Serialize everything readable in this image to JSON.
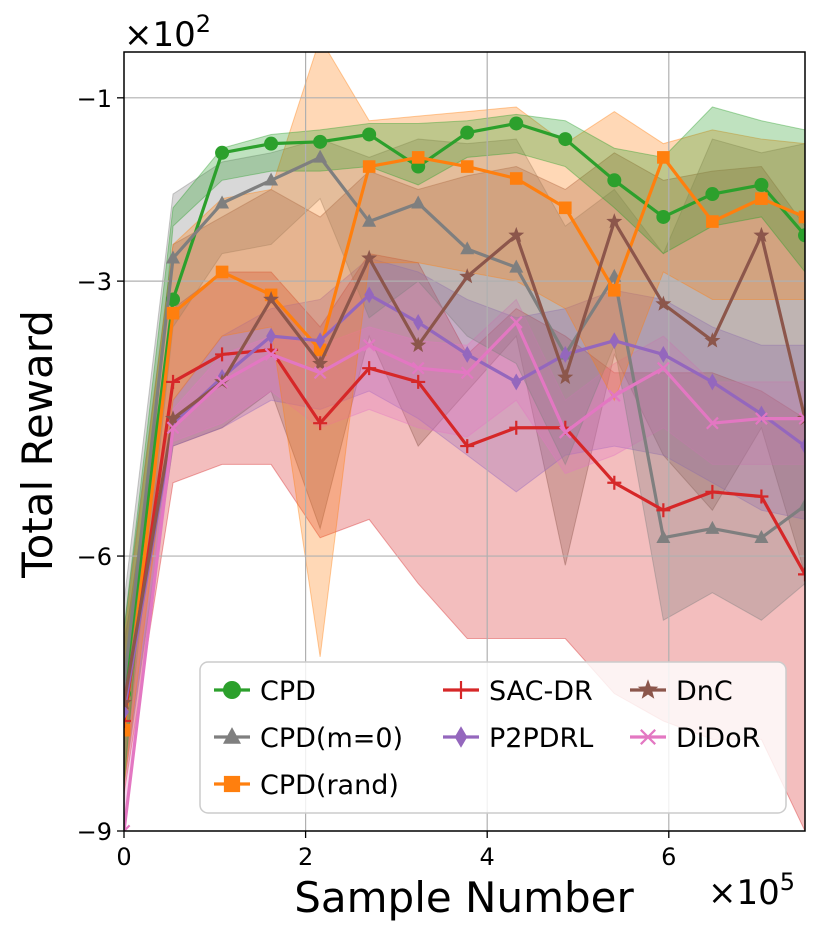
{
  "chart_data": {
    "type": "line",
    "xlabel": "Sample Number",
    "ylabel": "Total Reward",
    "x_multiplier": "×10",
    "x_multiplier_exp": "5",
    "y_multiplier": "×10",
    "y_multiplier_exp": "2",
    "xlim": [
      0,
      7.5
    ],
    "ylim": [
      -9,
      -0.5
    ],
    "xticks": [
      0,
      2,
      4,
      6
    ],
    "xtick_labels": [
      "0",
      "2",
      "4",
      "6"
    ],
    "yticks": [
      -9,
      -6,
      -3,
      -1
    ],
    "ytick_labels": [
      "−9",
      "−6",
      "−3",
      "−1"
    ],
    "grid": true,
    "legend_position": "bottom-right",
    "x": [
      0,
      0.54,
      1.08,
      1.62,
      2.16,
      2.7,
      3.24,
      3.78,
      4.32,
      4.86,
      5.4,
      5.94,
      6.48,
      7.02,
      7.5
    ],
    "series": [
      {
        "name": "CPD",
        "color": "#2ca02c",
        "marker": "circle",
        "values": [
          -7.5,
          -3.2,
          -1.6,
          -1.5,
          -1.48,
          -1.4,
          -1.75,
          -1.38,
          -1.28,
          -1.45,
          -1.9,
          -2.3,
          -2.05,
          -1.95,
          -2.5
        ],
        "lower": [
          -8.5,
          -2.4,
          -1.9,
          -1.8,
          -1.8,
          -1.75,
          -1.95,
          -1.65,
          -1.6,
          -1.75,
          -2.2,
          -2.7,
          -2.4,
          -2.3,
          -2.9
        ],
        "upper": [
          -6.8,
          -2.2,
          -1.55,
          -1.4,
          -1.35,
          -1.28,
          -1.28,
          -1.25,
          -1.18,
          -1.25,
          -1.55,
          -1.65,
          -1.1,
          -1.25,
          -1.35
        ]
      },
      {
        "name": "CPD(m=0)",
        "color": "#7f7f7f",
        "marker": "triangle",
        "values": [
          -7.4,
          -2.75,
          -2.15,
          -1.9,
          -1.65,
          -2.35,
          -2.15,
          -2.65,
          -2.85,
          -3.8,
          -2.95,
          -5.8,
          -5.7,
          -5.8,
          -5.45
        ],
        "lower": [
          -8.4,
          -3.5,
          -2.7,
          -2.6,
          -2.1,
          -3.4,
          -3.0,
          -3.6,
          -3.9,
          -5.0,
          -3.7,
          -6.7,
          -6.4,
          -6.7,
          -6.3
        ],
        "upper": [
          -6.5,
          -2.05,
          -1.7,
          -1.6,
          -1.45,
          -1.65,
          -1.45,
          -1.5,
          -1.45,
          -2.4,
          -2.0,
          -2.7,
          -1.45,
          -1.6,
          -1.5
        ]
      },
      {
        "name": "CPD(rand)",
        "color": "#ff7f0e",
        "marker": "square",
        "values": [
          -7.9,
          -3.35,
          -2.9,
          -3.15,
          -3.75,
          -1.75,
          -1.65,
          -1.75,
          -1.88,
          -2.2,
          -3.1,
          -1.65,
          -2.35,
          -2.1,
          -2.3
        ],
        "lower": [
          -8.5,
          -4.3,
          -3.6,
          -3.5,
          -7.1,
          -2.8,
          -2.8,
          -2.9,
          -3.0,
          -3.3,
          -4.3,
          -2.9,
          -3.2,
          -3.2,
          -3.2
        ],
        "upper": [
          -6.9,
          -2.6,
          -2.1,
          -2.0,
          -0.35,
          -1.25,
          -1.2,
          -1.15,
          -1.1,
          -1.5,
          -1.15,
          -1.5,
          -1.35,
          -1.45,
          -1.5
        ]
      },
      {
        "name": "SAC-DR",
        "color": "#d62728",
        "marker": "plus",
        "values": [
          -7.8,
          -4.1,
          -3.8,
          -3.75,
          -4.55,
          -3.95,
          -4.1,
          -4.8,
          -4.6,
          -4.6,
          -5.2,
          -5.5,
          -5.3,
          -5.35,
          -6.2
        ],
        "lower": [
          -8.6,
          -5.2,
          -5.0,
          -5.0,
          -5.8,
          -5.6,
          -6.3,
          -6.9,
          -6.9,
          -6.9,
          -7.5,
          -7.8,
          -8.0,
          -8.0,
          -9.0
        ],
        "upper": [
          -7.0,
          -3.3,
          -2.9,
          -2.9,
          -3.5,
          -2.7,
          -2.8,
          -3.8,
          -3.3,
          -3.6,
          -4.0,
          -4.0,
          -4.0,
          -4.2,
          -4.5
        ]
      },
      {
        "name": "P2PDRL",
        "color": "#9467bd",
        "marker": "diamond",
        "values": [
          -7.7,
          -4.55,
          -4.05,
          -3.6,
          -3.65,
          -3.15,
          -3.45,
          -3.8,
          -4.1,
          -3.8,
          -3.65,
          -3.8,
          -4.1,
          -4.45,
          -4.8
        ],
        "lower": [
          -8.4,
          -4.8,
          -4.6,
          -4.3,
          -4.4,
          -4.2,
          -4.5,
          -4.9,
          -5.3,
          -4.9,
          -4.8,
          -4.9,
          -5.2,
          -5.5,
          -5.6
        ],
        "upper": [
          -6.9,
          -4.3,
          -3.6,
          -3.3,
          -3.2,
          -2.75,
          -2.9,
          -3.2,
          -3.4,
          -3.3,
          -3.1,
          -3.2,
          -3.5,
          -3.7,
          -3.7
        ]
      },
      {
        "name": "DnC",
        "color": "#8c564b",
        "marker": "star",
        "values": [
          -7.6,
          -4.5,
          -4.1,
          -3.2,
          -3.9,
          -2.75,
          -3.7,
          -2.95,
          -2.5,
          -4.05,
          -2.35,
          -3.25,
          -3.65,
          -2.5,
          -4.5
        ],
        "lower": [
          -8.5,
          -4.8,
          -4.6,
          -4.2,
          -5.7,
          -3.6,
          -4.8,
          -4.2,
          -3.6,
          -6.1,
          -3.8,
          -4.9,
          -5.5,
          -4.6,
          -6.2
        ],
        "upper": [
          -6.8,
          -2.6,
          -2.3,
          -2.0,
          -2.3,
          -1.8,
          -2.0,
          -1.85,
          -1.75,
          -2.0,
          -1.6,
          -1.9,
          -1.8,
          -1.75,
          -2.4
        ]
      },
      {
        "name": "DiDoR",
        "color": "#e377c2",
        "marker": "x",
        "values": [
          -9.0,
          -4.6,
          -4.1,
          -3.8,
          -4.0,
          -3.7,
          -3.95,
          -4.0,
          -3.45,
          -4.65,
          -4.25,
          -3.95,
          -4.55,
          -4.5,
          -4.5
        ],
        "lower": [
          -9.0,
          -4.75,
          -4.55,
          -4.2,
          -4.6,
          -4.4,
          -4.6,
          -4.7,
          -4.3,
          -5.1,
          -4.9,
          -4.6,
          -5.0,
          -5.0,
          -5.0
        ],
        "upper": [
          -8.0,
          -4.4,
          -3.8,
          -3.6,
          -3.7,
          -3.5,
          -3.65,
          -3.7,
          -3.2,
          -4.3,
          -3.9,
          -3.6,
          -4.1,
          -4.1,
          -4.1
        ]
      }
    ],
    "legend": [
      [
        "CPD",
        "SAC-DR",
        "DnC"
      ],
      [
        "CPD(m=0)",
        "P2PDRL",
        "DiDoR"
      ],
      [
        "CPD(rand)"
      ]
    ]
  }
}
